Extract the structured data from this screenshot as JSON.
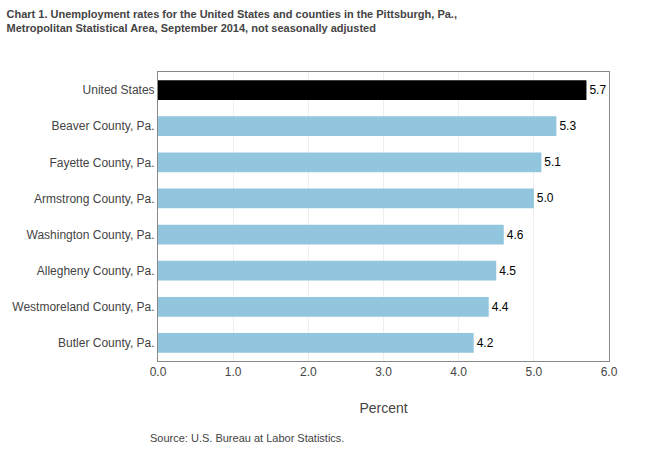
{
  "chart_data": {
    "type": "bar",
    "orientation": "horizontal",
    "title": "Chart 1. Unemployment rates for the United States and counties in the Pittsburgh, Pa.,\nMetropolitan Statistical Area, September 2014, not seasonally adjusted",
    "categories": [
      "Butler County, Pa.",
      "Westmoreland County, Pa.",
      "Allegheny County, Pa.",
      "Washington County, Pa.",
      "Armstrong County, Pa.",
      "Fayette County, Pa.",
      "Beaver County, Pa.",
      "United States"
    ],
    "values": [
      4.2,
      4.4,
      4.5,
      4.6,
      5.0,
      5.1,
      5.3,
      5.7
    ],
    "value_labels": [
      "4.2",
      "4.4",
      "4.5",
      "4.6",
      "5.0",
      "5.1",
      "5.3",
      "5.7"
    ],
    "colors": [
      "#92C5DE",
      "#92C5DE",
      "#92C5DE",
      "#92C5DE",
      "#92C5DE",
      "#92C5DE",
      "#92C5DE",
      "#000000"
    ],
    "xlabel": "Percent",
    "xlim": [
      0.0,
      6.0
    ],
    "xticks": [
      {
        "value": 0,
        "label": "0.0"
      },
      {
        "value": 1,
        "label": "1.0"
      },
      {
        "value": 2,
        "label": "2.0"
      },
      {
        "value": 3,
        "label": "3.0"
      },
      {
        "value": 4,
        "label": "4.0"
      },
      {
        "value": 5,
        "label": "5.0"
      },
      {
        "value": 6,
        "label": "6.0"
      }
    ],
    "grid": true,
    "data_labels": true,
    "annotations": [
      "Source: U.S. Bureau at Labor Statistics."
    ]
  }
}
